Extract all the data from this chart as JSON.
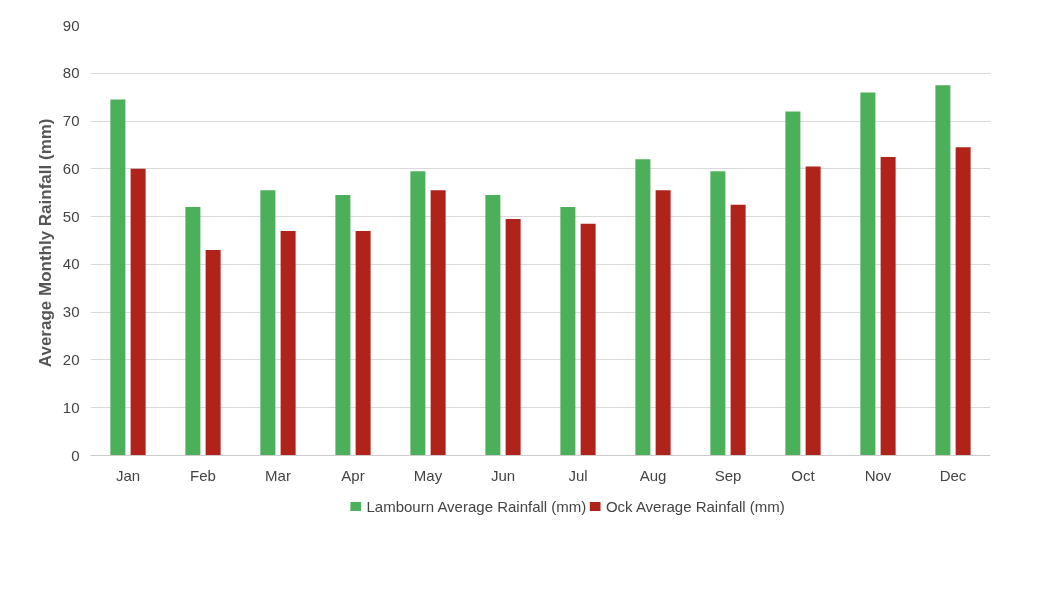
{
  "chart_data": {
    "type": "bar",
    "ylabel": "Average Monthly  Rainfall (mm)",
    "categories": [
      "Jan",
      "Feb",
      "Mar",
      "Apr",
      "May",
      "Jun",
      "Jul",
      "Aug",
      "Sep",
      "Oct",
      "Nov",
      "Dec"
    ],
    "series": [
      {
        "name": "Lambourn Average Rainfall (mm)",
        "color": "#4caf5a",
        "values": [
          74.5,
          52,
          55.5,
          54.5,
          59.5,
          54.5,
          52,
          62,
          59.5,
          72,
          76,
          77.5
        ]
      },
      {
        "name": "Ock Average Rainfall (mm)",
        "color": "#b0231b",
        "values": [
          60,
          43,
          47,
          47,
          55.5,
          49.5,
          48.5,
          55.5,
          52.5,
          60.5,
          62.5,
          64.5
        ]
      }
    ],
    "ylim": [
      0,
      90
    ],
    "yticks": [
      0,
      10,
      20,
      30,
      40,
      50,
      60,
      70,
      80,
      90
    ],
    "grid": "y",
    "legend": "bottom"
  }
}
